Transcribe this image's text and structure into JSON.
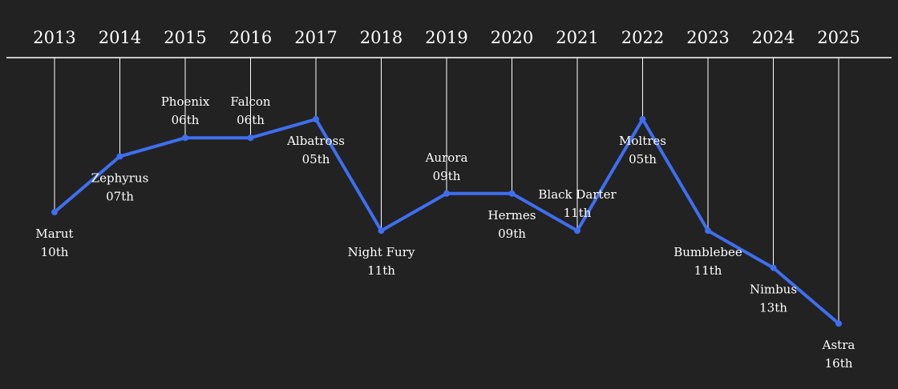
{
  "chart_data": {
    "type": "line",
    "x": [
      "2013",
      "2014",
      "2015",
      "2016",
      "2017",
      "2018",
      "2019",
      "2020",
      "2021",
      "2022",
      "2023",
      "2024",
      "2025"
    ],
    "names": [
      "Marut",
      "Zephyrus",
      "Phoenix",
      "Falcon",
      "Albatross",
      "Night Fury",
      "Aurora",
      "Hermes",
      "Black Darter",
      "Moltres",
      "Bumblebee",
      "Nimbus",
      "Astra"
    ],
    "rank_labels": [
      "10th",
      "07th",
      "06th",
      "06th",
      "05th",
      "11th",
      "09th",
      "09th",
      "11th",
      "05th",
      "11th",
      "13th",
      "16th"
    ],
    "values": [
      10,
      7,
      6,
      6,
      5,
      11,
      9,
      9,
      11,
      5,
      11,
      13,
      16
    ],
    "label_position": [
      "below",
      "below",
      "above",
      "above",
      "below",
      "below",
      "above",
      "below",
      "above",
      "below",
      "below",
      "below",
      "below"
    ],
    "y_axis": "inverted",
    "line_color": "#3f6ff0",
    "axis_color": "#ffffff",
    "background_color": "#222222"
  }
}
